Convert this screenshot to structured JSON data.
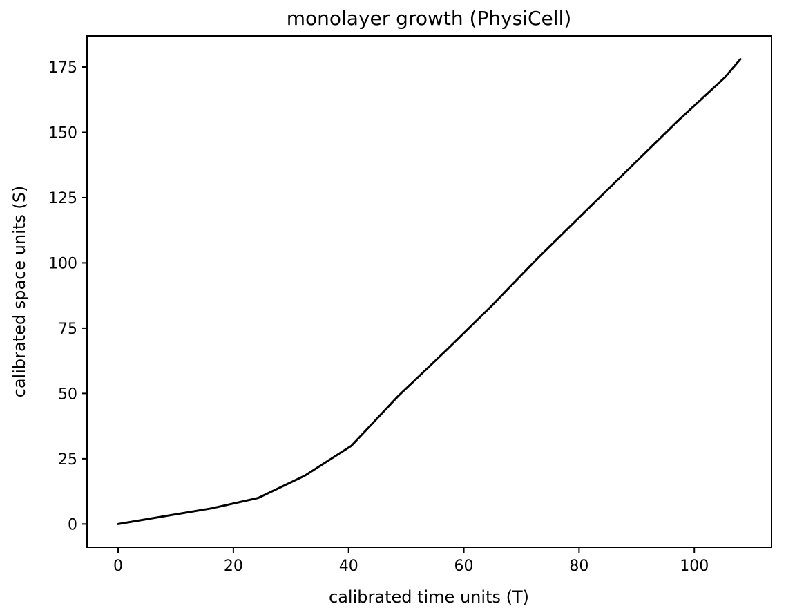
{
  "chart_data": {
    "type": "line",
    "title": "monolayer growth (PhysiCell)",
    "xlabel": "calibrated time units (T)",
    "ylabel": "calibrated space units (S)",
    "xlim": [
      -5.4,
      113.4
    ],
    "ylim": [
      -8.9,
      186.9
    ],
    "xticks": [
      0,
      20,
      40,
      60,
      80,
      100
    ],
    "yticks": [
      0,
      25,
      50,
      75,
      100,
      125,
      150,
      175
    ],
    "grid": false,
    "legend": "none",
    "line_color": "#000000",
    "series": [
      {
        "x": [
          0,
          8.1,
          16.2,
          24.3,
          32.4,
          40.5,
          48.6,
          56.7,
          64.8,
          72.9,
          81.0,
          89.1,
          97.2,
          105.3,
          108.0
        ],
        "y": [
          0,
          3.0,
          6.0,
          10.0,
          18.5,
          30.0,
          49.0,
          66.0,
          83.5,
          102.0,
          119.5,
          137.0,
          154.5,
          171.0,
          178.0
        ]
      }
    ]
  }
}
